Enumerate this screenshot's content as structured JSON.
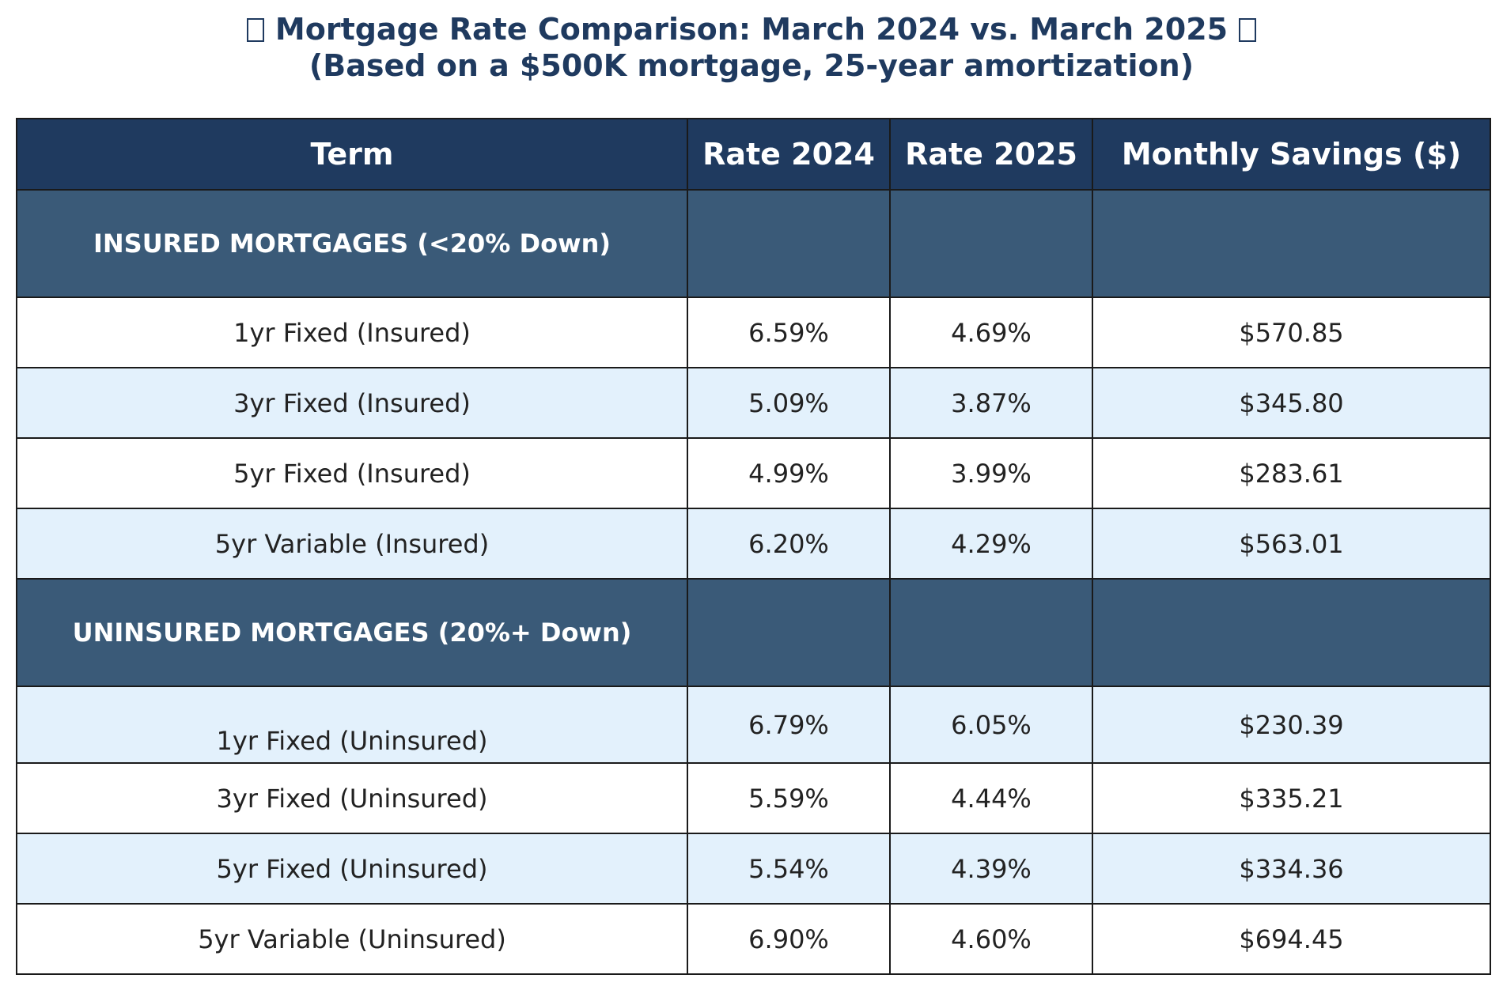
{
  "title": {
    "line1": "Mortgage Rate Comparison: March 2024 vs. March 2025",
    "line2": "(Based on a $500K mortgage, 25-year amortization)"
  },
  "colors": {
    "header_bg": "#1f3a5f",
    "section_bg": "#3a5a78",
    "alt_row_bg": "#e3f1fc",
    "title_text": "#1f3a5f"
  },
  "chart_data": {
    "type": "table",
    "columns": [
      "Term",
      "Rate 2024",
      "Rate 2025",
      "Monthly Savings ($)"
    ],
    "sections": [
      {
        "label": "INSURED MORTGAGES (<20% Down)",
        "rows": [
          {
            "term": "1yr Fixed (Insured)",
            "rate_2024": "6.59%",
            "rate_2025": "4.69%",
            "savings": "$570.85"
          },
          {
            "term": "3yr Fixed (Insured)",
            "rate_2024": "5.09%",
            "rate_2025": "3.87%",
            "savings": "$345.80"
          },
          {
            "term": "5yr Fixed (Insured)",
            "rate_2024": "4.99%",
            "rate_2025": "3.99%",
            "savings": "$283.61"
          },
          {
            "term": "5yr Variable (Insured)",
            "rate_2024": "6.20%",
            "rate_2025": "4.29%",
            "savings": "$563.01"
          }
        ]
      },
      {
        "label": "UNINSURED MORTGAGES (20%+ Down)",
        "rows": [
          {
            "term": "1yr Fixed (Uninsured)",
            "rate_2024": "6.79%",
            "rate_2025": "6.05%",
            "savings": "$230.39"
          },
          {
            "term": "3yr Fixed (Uninsured)",
            "rate_2024": "5.59%",
            "rate_2025": "4.44%",
            "savings": "$335.21"
          },
          {
            "term": "5yr Fixed (Uninsured)",
            "rate_2024": "5.54%",
            "rate_2025": "4.39%",
            "savings": "$334.36"
          },
          {
            "term": "5yr Variable (Uninsured)",
            "rate_2024": "6.90%",
            "rate_2025": "4.60%",
            "savings": "$694.45"
          }
        ]
      }
    ]
  }
}
